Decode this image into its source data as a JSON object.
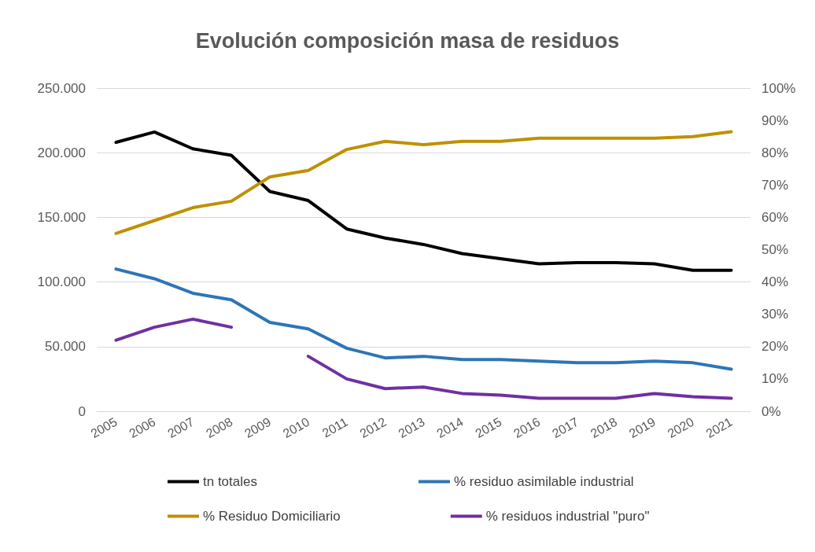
{
  "chart_data": {
    "type": "line",
    "title": "Evolución composición masa de residuos",
    "categories": [
      "2005",
      "2006",
      "2007",
      "2008",
      "2009",
      "2010",
      "2011",
      "2012",
      "2013",
      "2014",
      "2015",
      "2016",
      "2017",
      "2018",
      "2019",
      "2020",
      "2021"
    ],
    "series": [
      {
        "name": "tn totales",
        "color": "#000000",
        "values": [
          208000,
          216000,
          203000,
          198000,
          170000,
          163000,
          141000,
          134000,
          129000,
          122000,
          118000,
          114000,
          115000,
          115000,
          114000,
          109000,
          109000
        ]
      },
      {
        "name": "% residuo asimilable industrial",
        "color": "#2e75b6",
        "axis": "y2",
        "values": [
          44,
          41,
          36.5,
          34.5,
          27.5,
          25.5,
          19.5,
          16.5,
          17,
          16,
          16,
          15.5,
          15,
          15,
          15.5,
          15,
          13
        ]
      },
      {
        "name": "% Residuo Domiciliario",
        "color": "#bf9000",
        "axis": "y2",
        "values": [
          55,
          59,
          63,
          65,
          72.5,
          74.5,
          81,
          83.5,
          82.5,
          83.5,
          83.5,
          84.5,
          84.5,
          84.5,
          84.5,
          85,
          86.5
        ]
      },
      {
        "name": "% residuos industrial \"puro\"",
        "color": "#7030a0",
        "axis": "y2",
        "values": [
          22,
          26,
          28.5,
          26,
          null,
          17,
          10,
          7,
          7.5,
          5.5,
          5,
          4,
          4,
          4,
          5.5,
          4.5,
          4
        ]
      }
    ],
    "ylim": [
      0,
      250000
    ],
    "yticks": [
      {
        "value": 0,
        "label": "0"
      },
      {
        "value": 50000,
        "label": "50.000"
      },
      {
        "value": 100000,
        "label": "100.000"
      },
      {
        "value": 150000,
        "label": "150.000"
      },
      {
        "value": 200000,
        "label": "200.000"
      },
      {
        "value": 250000,
        "label": "250.000"
      }
    ],
    "y2lim": [
      0,
      100
    ],
    "y2ticks": [
      {
        "value": 0,
        "label": "0%"
      },
      {
        "value": 10,
        "label": "10%"
      },
      {
        "value": 20,
        "label": "20%"
      },
      {
        "value": 30,
        "label": "30%"
      },
      {
        "value": 40,
        "label": "40%"
      },
      {
        "value": 50,
        "label": "50%"
      },
      {
        "value": 60,
        "label": "60%"
      },
      {
        "value": 70,
        "label": "70%"
      },
      {
        "value": 80,
        "label": "80%"
      },
      {
        "value": 90,
        "label": "90%"
      },
      {
        "value": 100,
        "label": "100%"
      }
    ],
    "grid": "y",
    "legend": "bottom",
    "marker": "none",
    "line_style": "solid"
  }
}
